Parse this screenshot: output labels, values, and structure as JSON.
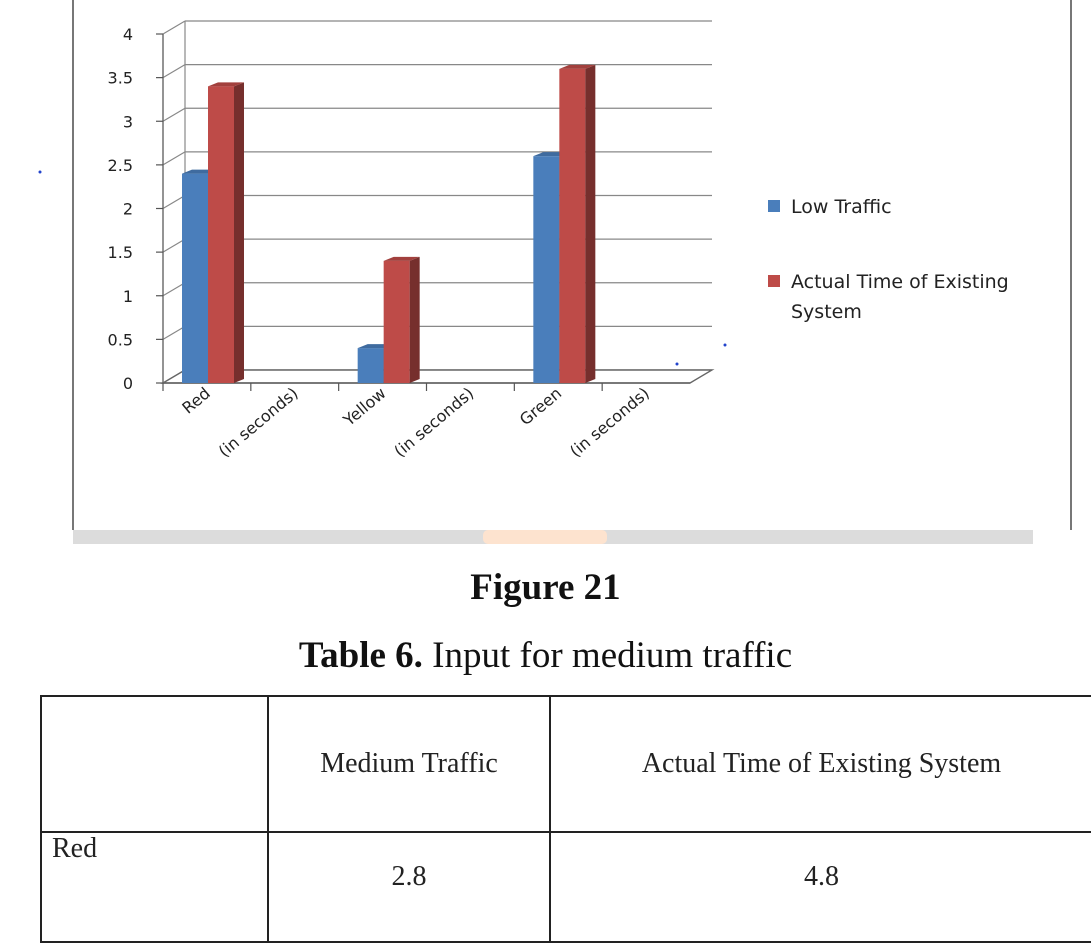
{
  "chart_data": {
    "type": "bar",
    "categories": [
      "Red",
      "(in seconds)",
      "Yellow",
      "(in seconds)",
      "Green",
      "(in seconds)"
    ],
    "series": [
      {
        "name": "Low Traffic",
        "color": "#4a7ebb",
        "values": [
          2.4,
          null,
          0.4,
          null,
          2.6,
          null
        ]
      },
      {
        "name": "Actual Time of Existing System",
        "color": "#be4b48",
        "values": [
          3.4,
          null,
          1.4,
          null,
          3.6,
          null
        ]
      }
    ],
    "yticks": [
      "0",
      "0.5",
      "1",
      "1.5",
      "2",
      "2.5",
      "3",
      "3.5",
      "4"
    ],
    "ylim": [
      0,
      4
    ],
    "grid": true,
    "legend_position": "right",
    "title": "",
    "xlabel": "",
    "ylabel": ""
  },
  "legend": {
    "low_traffic": "Low Traffic",
    "actual_line1": "Actual Time of Existing",
    "actual_line2": "System"
  },
  "figure_caption": "Figure 21",
  "table_caption": {
    "label": "Table 6.",
    "text": " Input for medium traffic"
  },
  "table": {
    "headers": [
      "",
      "Medium Traffic",
      "Actual Time of Existing  System"
    ],
    "rows": [
      [
        "Red",
        "2.8",
        "4.8"
      ]
    ]
  }
}
